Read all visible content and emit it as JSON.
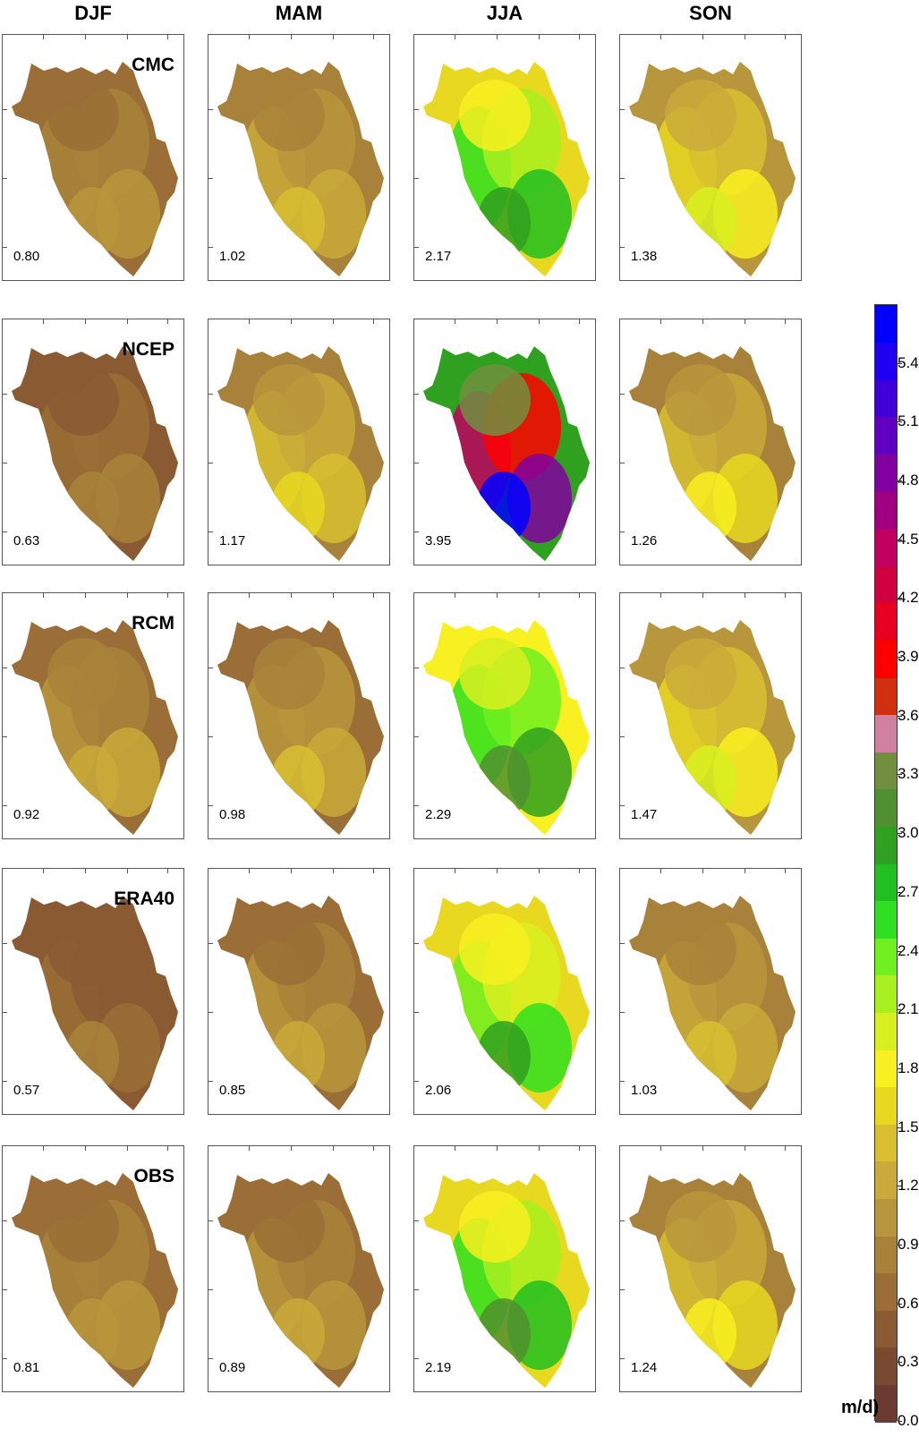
{
  "chart_data": {
    "type": "heatmap",
    "seasons": [
      "DJF",
      "MAM",
      "JJA",
      "SON"
    ],
    "models": [
      "CMC",
      "NCEP",
      "RCM",
      "ERA40",
      "OBS"
    ],
    "panel_values": [
      [
        "0.80",
        "1.02",
        "2.17",
        "1.38"
      ],
      [
        "0.63",
        "1.17",
        "3.95",
        "1.26"
      ],
      [
        "0.92",
        "0.98",
        "2.29",
        "1.47"
      ],
      [
        "0.57",
        "0.85",
        "2.06",
        "1.03"
      ],
      [
        "0.81",
        "0.89",
        "2.19",
        "1.24"
      ]
    ],
    "colorbar": {
      "unit": "m/d)",
      "ticks": [
        "0.0",
        "0.3",
        "0.6",
        "0.9",
        "1.2",
        "1.5",
        "1.8",
        "2.1",
        "2.4",
        "2.7",
        "3.0",
        "3.3",
        "3.6",
        "3.9",
        "4.2",
        "4.5",
        "4.8",
        "5.1",
        "5.4"
      ],
      "range": [
        0,
        5.7
      ],
      "colors": [
        "#6b3a30",
        "#7a4a30",
        "#8a5a32",
        "#9a6e36",
        "#a8823a",
        "#b8963c",
        "#c9aa3a",
        "#d8c030",
        "#e8d820",
        "#f8f020",
        "#d8f020",
        "#a8f020",
        "#70f020",
        "#30e020",
        "#20c020",
        "#30a020",
        "#509030",
        "#709040",
        "#d080a0",
        "#d03010",
        "#ff0000",
        "#e80020",
        "#d00040",
        "#c00060",
        "#a00080",
        "#8000a0",
        "#6000c0",
        "#4000d8",
        "#2000f0",
        "#0000ff"
      ]
    }
  }
}
